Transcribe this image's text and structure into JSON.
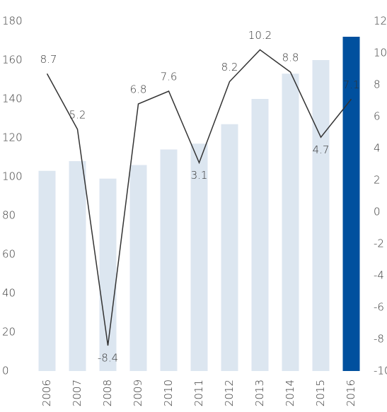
{
  "chart_data": {
    "type": "bar_line",
    "categories": [
      "2006",
      "2007",
      "2008",
      "2009",
      "2010",
      "2011",
      "2012",
      "2013",
      "2014",
      "2015",
      "2016"
    ],
    "series": [
      {
        "type": "bar",
        "values": [
          103,
          108,
          99,
          106,
          114,
          117,
          127,
          140,
          153,
          160,
          172
        ],
        "colors": [
          "#dce6f0",
          "#dce6f0",
          "#dce6f0",
          "#dce6f0",
          "#dce6f0",
          "#dce6f0",
          "#dce6f0",
          "#dce6f0",
          "#dce6f0",
          "#dce6f0",
          "#00509e"
        ]
      },
      {
        "type": "line",
        "axis": "y2",
        "color": "#333333",
        "values": [
          8.7,
          5.2,
          -8.4,
          6.8,
          7.6,
          3.1,
          8.2,
          10.2,
          8.8,
          4.7,
          7.1
        ]
      }
    ],
    "ylim": [
      0,
      180
    ],
    "yticks": [
      0,
      20,
      40,
      60,
      80,
      100,
      120,
      140,
      160,
      180
    ],
    "y2lim": [
      -10,
      12
    ],
    "y2ticks": [
      -10,
      -8,
      -6,
      -4,
      -2,
      0,
      2,
      4,
      6,
      8,
      10,
      12
    ]
  }
}
